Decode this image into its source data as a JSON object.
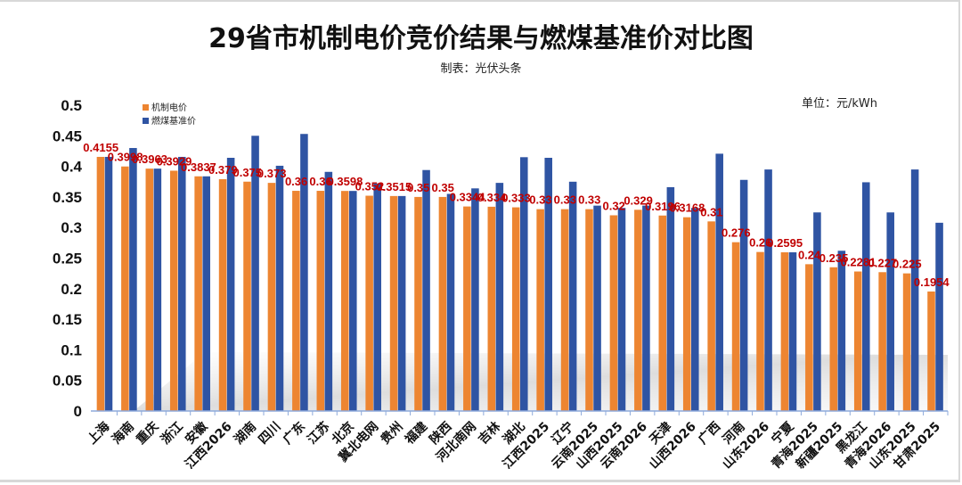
{
  "chart_data": {
    "type": "bar",
    "title": "29省市机制电价竞价结果与燃煤基准价对比图",
    "subtitle": "制表：光伏头条",
    "unit": "单位：元/kWh",
    "xlabel": "",
    "ylabel": "",
    "ylim": [
      0,
      0.5
    ],
    "yticks": [
      "0",
      "0.05",
      "0.1",
      "0.15",
      "0.2",
      "0.25",
      "0.3",
      "0.35",
      "0.4",
      "0.45",
      "0.5"
    ],
    "grid": false,
    "legend_position": "top-left",
    "categories": [
      "上海",
      "海南",
      "重庆",
      "浙江",
      "安徽",
      "江西2026",
      "湖南",
      "四川",
      "广东",
      "江苏",
      "北京",
      "冀北电网",
      "贵州",
      "福建",
      "陕西",
      "河北南网",
      "吉林",
      "湖北",
      "江西2025",
      "辽宁",
      "云南2025",
      "山西2025",
      "云南2026",
      "天津",
      "山西2026",
      "广西",
      "河南",
      "山东2026",
      "宁夏",
      "青海2025",
      "新疆2025",
      "黑龙江",
      "青海2026",
      "山东2025",
      "甘肃2025"
    ],
    "series": [
      {
        "name": "机制电价",
        "color": "#ed8531",
        "values": [
          0.4155,
          0.3998,
          0.3963,
          0.3929,
          0.3837,
          0.379,
          0.375,
          0.373,
          0.36,
          0.36,
          0.3598,
          0.352,
          0.3515,
          0.35,
          0.35,
          0.3344,
          0.334,
          0.333,
          0.33,
          0.33,
          0.33,
          0.32,
          0.329,
          0.3196,
          0.3168,
          0.31,
          0.276,
          0.26,
          0.2595,
          0.24,
          0.235,
          0.2281,
          0.227,
          0.225,
          0.1954
        ],
        "labels": [
          "0.4155",
          "0.3998",
          "0.3963",
          "0.3929",
          "0.3837",
          "0.379",
          "0.375",
          "0.373",
          "0.36",
          "0.36",
          "0.3598",
          "0.352",
          "0.3515",
          "0.35",
          "0.35",
          "0.3344",
          "0.334",
          "0.333",
          "0.33",
          "0.33",
          "0.33",
          "0.32",
          "0.329",
          "0.3196",
          "0.3168",
          "0.31",
          "0.276",
          "0.26",
          "0.2595",
          "0.24",
          "0.235",
          "0.2281",
          "0.227",
          "0.225",
          "0.1954"
        ]
      },
      {
        "name": "燃煤基准价",
        "color": "#2f54a3",
        "values": [
          0.4155,
          0.43,
          0.3963,
          0.4155,
          0.3837,
          0.414,
          0.45,
          0.401,
          0.453,
          0.391,
          0.3598,
          0.372,
          0.3515,
          0.394,
          0.355,
          0.364,
          0.373,
          0.415,
          0.414,
          0.3749,
          0.3358,
          0.332,
          0.3358,
          0.366,
          0.332,
          0.4207,
          0.3779,
          0.3949,
          0.2595,
          0.3247,
          0.262,
          0.374,
          0.3247,
          0.3949,
          0.3078
        ]
      }
    ]
  }
}
